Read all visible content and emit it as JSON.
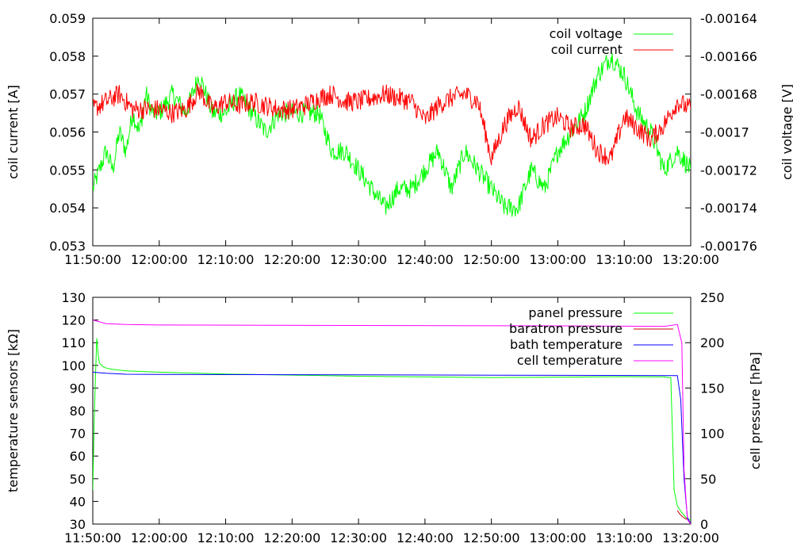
{
  "chart_data": [
    {
      "type": "line",
      "xlabel": "",
      "ylabel": "coil current [A]",
      "y2label": "coil voltage [V]",
      "x_ticks": [
        "11:50:00",
        "12:00:00",
        "12:10:00",
        "12:20:00",
        "12:30:00",
        "12:40:00",
        "12:50:00",
        "13:00:00",
        "13:10:00",
        "13:20:00"
      ],
      "xlim_minutes": [
        0,
        90
      ],
      "ylim": [
        0.053,
        0.059
      ],
      "y_ticks": [
        "0.053",
        "0.054",
        "0.055",
        "0.056",
        "0.057",
        "0.058",
        "0.059"
      ],
      "y2lim": [
        -0.00176,
        -0.00164
      ],
      "y2_ticks": [
        "-0.00176",
        "-0.00174",
        "-0.00172",
        "-0.0017",
        "-0.00168",
        "-0.00166",
        "-0.00164"
      ],
      "legend_position": "top-right",
      "series": [
        {
          "name": "coil voltage",
          "color": "#00ff00",
          "axis": "y2",
          "x": [
            "11:50",
            "11:51",
            "11:52",
            "11:53",
            "11:54",
            "11:55",
            "11:56",
            "11:57",
            "11:58",
            "11:59",
            "12:00",
            "12:02",
            "12:04",
            "12:06",
            "12:08",
            "12:10",
            "12:12",
            "12:14",
            "12:16",
            "12:18",
            "12:20",
            "12:22",
            "12:24",
            "12:26",
            "12:28",
            "12:30",
            "12:32",
            "12:34",
            "12:36",
            "12:38",
            "12:40",
            "12:42",
            "12:44",
            "12:46",
            "12:48",
            "12:50",
            "12:52",
            "12:54",
            "12:56",
            "12:58",
            "13:00",
            "13:02",
            "13:04",
            "13:06",
            "13:08",
            "13:10",
            "13:12",
            "13:14",
            "13:16",
            "13:18",
            "13:20"
          ],
          "values": [
            -0.00173,
            -0.00172,
            -0.00171,
            -0.00172,
            -0.0017,
            -0.00171,
            -0.00169,
            -0.0017,
            -0.00168,
            -0.00169,
            -0.00169,
            -0.00168,
            -0.00169,
            -0.00167,
            -0.00169,
            -0.00169,
            -0.00168,
            -0.00169,
            -0.0017,
            -0.00169,
            -0.00169,
            -0.00169,
            -0.00169,
            -0.00171,
            -0.00171,
            -0.00172,
            -0.00173,
            -0.00174,
            -0.00173,
            -0.00173,
            -0.00172,
            -0.00171,
            -0.00173,
            -0.00171,
            -0.00172,
            -0.00173,
            -0.00174,
            -0.00174,
            -0.00172,
            -0.00173,
            -0.00171,
            -0.0017,
            -0.00169,
            -0.00167,
            -0.00166,
            -0.00167,
            -0.00169,
            -0.0017,
            -0.00172,
            -0.00171,
            -0.00172
          ]
        },
        {
          "name": "coil current",
          "color": "#ff0000",
          "axis": "y",
          "x": [
            "11:50",
            "11:52",
            "11:54",
            "11:56",
            "11:58",
            "12:00",
            "12:02",
            "12:04",
            "12:06",
            "12:08",
            "12:10",
            "12:12",
            "12:14",
            "12:16",
            "12:18",
            "12:20",
            "12:22",
            "12:24",
            "12:26",
            "12:28",
            "12:30",
            "12:32",
            "12:34",
            "12:36",
            "12:38",
            "12:40",
            "12:42",
            "12:44",
            "12:46",
            "12:48",
            "12:50",
            "12:52",
            "12:54",
            "12:56",
            "12:58",
            "13:00",
            "13:02",
            "13:04",
            "13:06",
            "13:08",
            "13:10",
            "13:12",
            "13:14",
            "13:16",
            "13:18",
            "13:20"
          ],
          "values": [
            0.0566,
            0.0568,
            0.057,
            0.0566,
            0.0566,
            0.0566,
            0.0565,
            0.0566,
            0.0571,
            0.0566,
            0.0568,
            0.0567,
            0.0568,
            0.0567,
            0.0566,
            0.0566,
            0.0567,
            0.0569,
            0.057,
            0.0568,
            0.0568,
            0.0569,
            0.057,
            0.0569,
            0.0568,
            0.0563,
            0.0567,
            0.0569,
            0.057,
            0.0568,
            0.0553,
            0.0562,
            0.0567,
            0.0558,
            0.0562,
            0.0564,
            0.0561,
            0.0562,
            0.0555,
            0.0553,
            0.0564,
            0.0561,
            0.0558,
            0.0562,
            0.0568,
            0.0566
          ]
        }
      ]
    },
    {
      "type": "line",
      "xlabel": "",
      "ylabel": "temperature sensors [kΩ]",
      "y2label": "cell pressure [hPa]",
      "x_ticks": [
        "11:50:00",
        "12:00:00",
        "12:10:00",
        "12:20:00",
        "12:30:00",
        "12:40:00",
        "12:50:00",
        "13:00:00",
        "13:10:00",
        "13:20:00"
      ],
      "xlim_minutes": [
        0,
        90
      ],
      "ylim": [
        30,
        130
      ],
      "y_ticks": [
        "30",
        "40",
        "50",
        "60",
        "70",
        "80",
        "90",
        "100",
        "110",
        "120",
        "130"
      ],
      "y2lim": [
        0,
        250
      ],
      "y2_ticks": [
        "0",
        "50",
        "100",
        "150",
        "200",
        "250"
      ],
      "legend_position": "top-right",
      "series": [
        {
          "name": "panel pressure",
          "color": "#00ff00",
          "axis": "y",
          "x": [
            "11:50:00",
            "11:50:12",
            "11:50:24",
            "11:50:36",
            "11:50:48",
            "11:51:00",
            "11:51:30",
            "11:52:00",
            "11:53:00",
            "11:55:00",
            "12:00:00",
            "12:10:00",
            "12:20:00",
            "12:30:00",
            "12:40:00",
            "12:50:00",
            "13:00:00",
            "13:10:00",
            "13:16:00",
            "13:17:00",
            "13:17:30",
            "13:18:00",
            "13:18:40",
            "13:19:00",
            "13:19:30",
            "13:20:00"
          ],
          "values": [
            45,
            75,
            95,
            112,
            105,
            101,
            99.5,
            98.8,
            98.2,
            97.6,
            97,
            96.2,
            95.7,
            95.2,
            94.9,
            94.6,
            94.8,
            95,
            94.9,
            94.5,
            45,
            38,
            35,
            34,
            32,
            32
          ]
        },
        {
          "name": "baratron pressure",
          "color": "#cc0000",
          "axis": "y",
          "x": [
            "13:18:00",
            "13:18:20",
            "13:18:40",
            "13:19:00",
            "13:19:20",
            "13:19:40"
          ],
          "values": [
            36,
            34.5,
            33.5,
            32.8,
            32.2,
            32
          ]
        },
        {
          "name": "bath temperature",
          "color": "#0000ff",
          "axis": "y",
          "x": [
            "11:50:00",
            "11:52:00",
            "11:55:00",
            "12:00:00",
            "12:30:00",
            "13:00:00",
            "13:18:00",
            "13:18:30",
            "13:19:00",
            "13:19:30",
            "13:20:00"
          ],
          "values": [
            97,
            96.5,
            96.1,
            96,
            95.8,
            95.6,
            95.5,
            85,
            50,
            33,
            30
          ]
        },
        {
          "name": "cell temperature",
          "color": "#ff00ff",
          "axis": "y2",
          "x": [
            "11:50:00",
            "11:51:00",
            "11:52:00",
            "11:55:00",
            "12:00:00",
            "12:30:00",
            "13:00:00",
            "13:16:00",
            "13:18:00",
            "13:18:40",
            "13:19:00",
            "13:19:30",
            "13:20:00"
          ],
          "values": [
            225,
            223,
            221,
            220,
            219.5,
            219,
            218.5,
            218,
            220,
            200,
            60,
            5,
            0
          ]
        }
      ]
    }
  ]
}
